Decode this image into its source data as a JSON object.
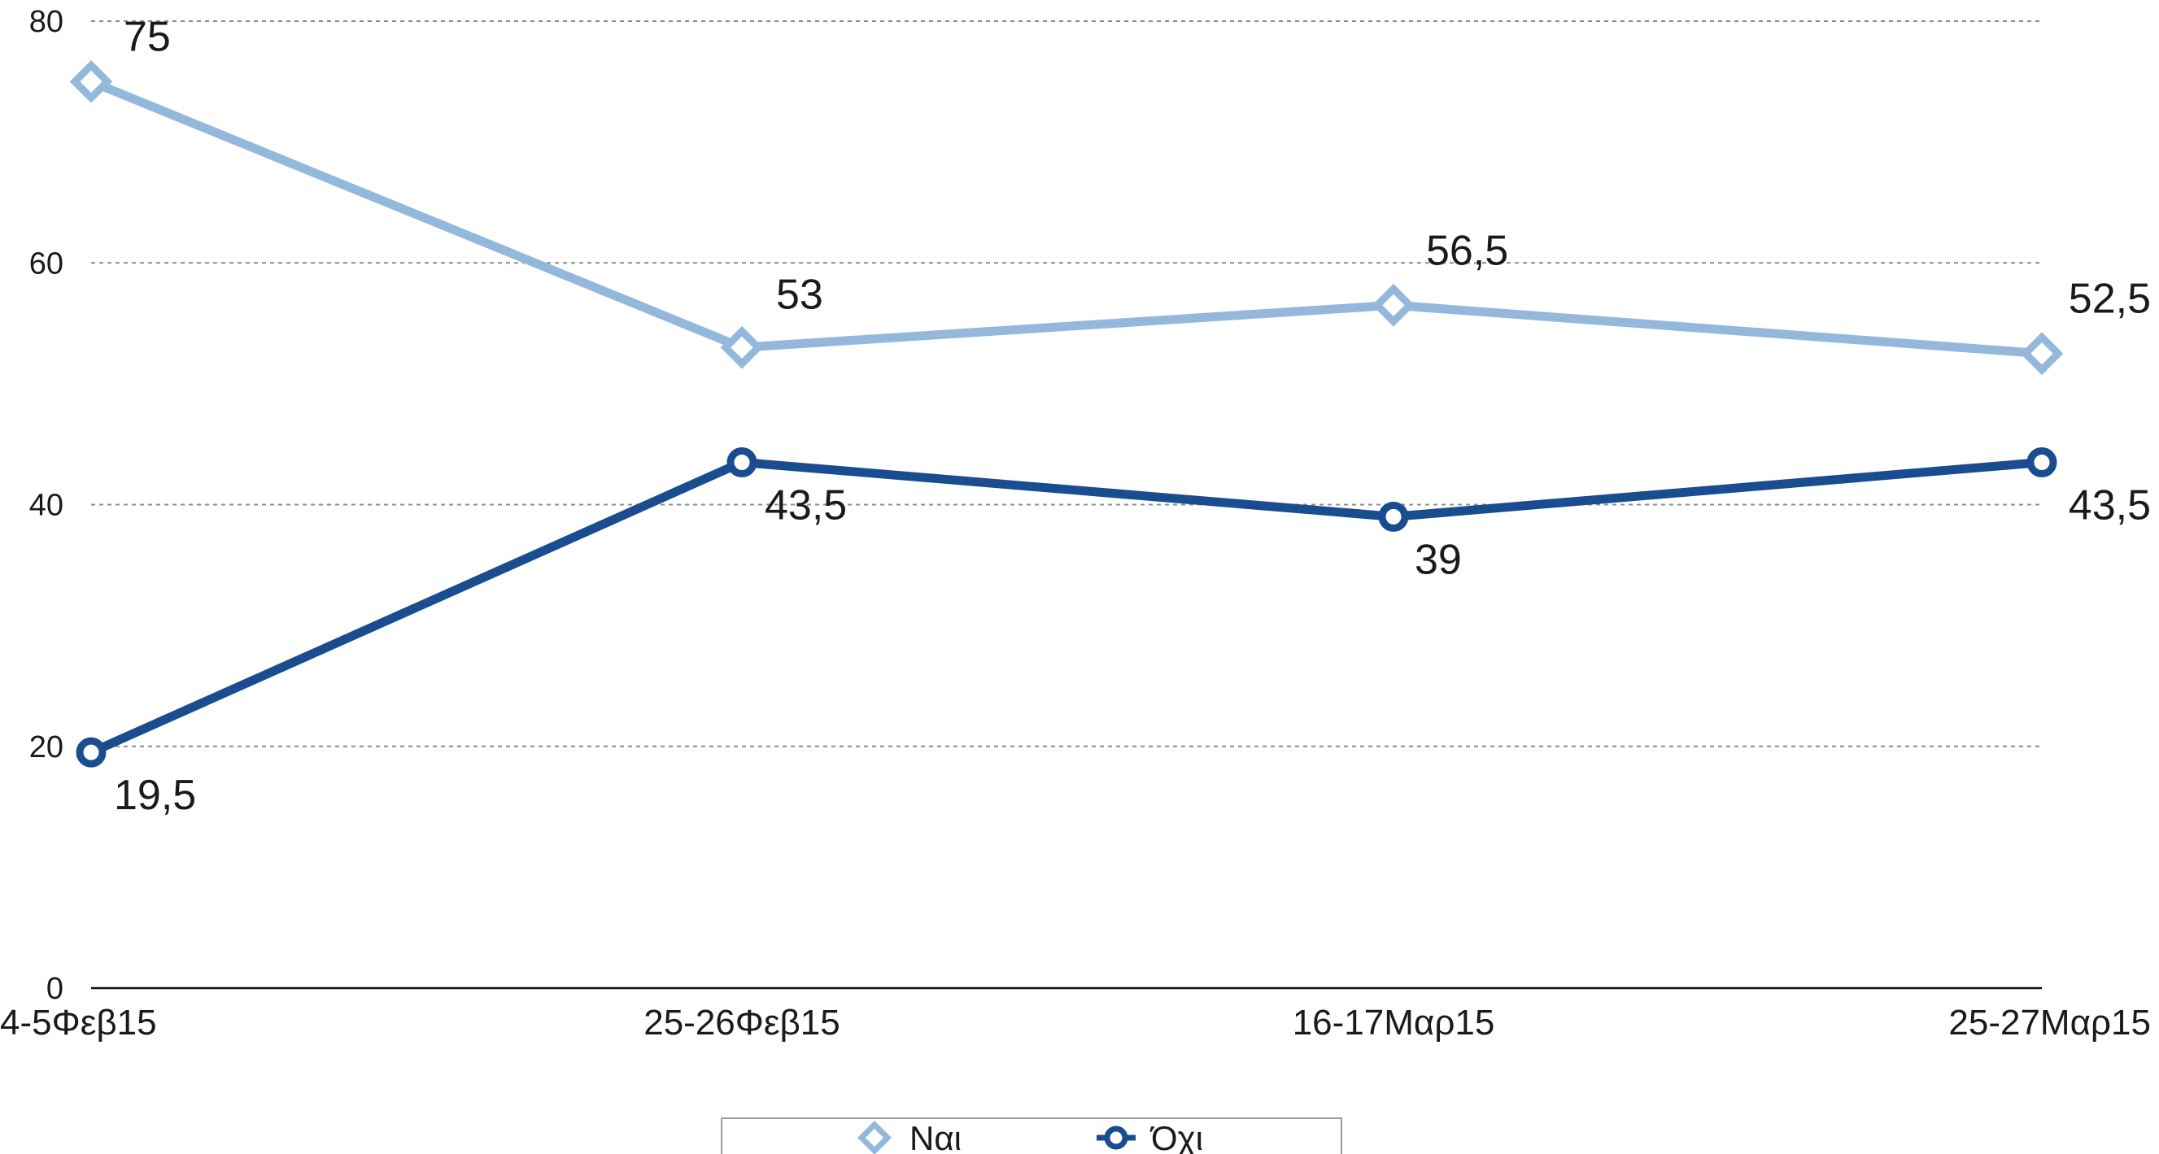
{
  "chart_data": {
    "type": "line",
    "title": "",
    "xlabel": "",
    "ylabel": "",
    "categories": [
      "4-5Φεβ15",
      "25-26Φεβ15",
      "16-17Μαρ15",
      "25-27Μαρ15"
    ],
    "ylim": [
      0,
      80
    ],
    "yticks": [
      0,
      20,
      40,
      60,
      80
    ],
    "grid": true,
    "legend": "bottom",
    "series": [
      {
        "name": "Ναι",
        "values": [
          75,
          53,
          56.5,
          52.5
        ],
        "labels": [
          "75",
          "53",
          "56,5",
          "52,5"
        ],
        "color": "#94b8db",
        "marker": "diamond"
      },
      {
        "name": "Όχι",
        "values": [
          19.5,
          43.5,
          39,
          43.5
        ],
        "labels": [
          "19,5",
          "43,5",
          "39",
          "43,5"
        ],
        "color": "#1a4d8f",
        "marker": "circle"
      }
    ]
  }
}
